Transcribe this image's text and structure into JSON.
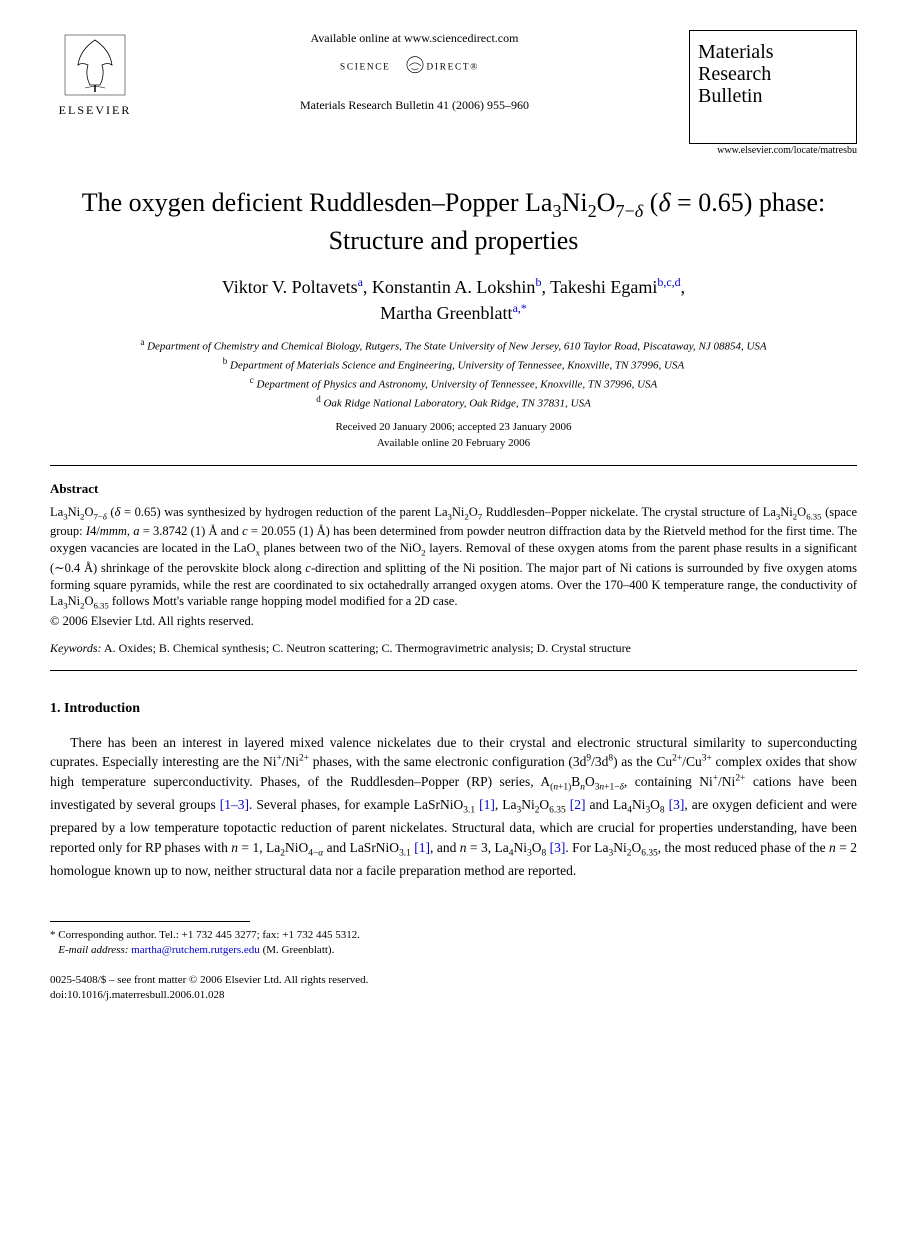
{
  "header": {
    "elsevier_label": "ELSEVIER",
    "available_online": "Available online at www.sciencedirect.com",
    "sciencedirect_label": "SCIENCE DIRECT",
    "journal_ref": "Materials Research Bulletin 41 (2006) 955–960",
    "journal_box_line1": "Materials",
    "journal_box_line2": "Research",
    "journal_box_line3": "Bulletin",
    "journal_url": "www.elsevier.com/locate/matresbu"
  },
  "title": {
    "html": "The oxygen deficient Ruddlesden–Popper La<sub>3</sub>Ni<sub>2</sub>O<sub>7−<i>δ</i></sub> (<i>δ</i> = 0.65) phase: Structure and properties"
  },
  "authors": {
    "a1": "Viktor V. Poltavets",
    "a1sup": "a",
    "a2": "Konstantin A. Lokshin",
    "a2sup": "b",
    "a3": "Takeshi Egami",
    "a3sup": "b,c,d",
    "a4": "Martha Greenblatt",
    "a4sup": "a,",
    "a4star": "*"
  },
  "affiliations": {
    "a": "Department of Chemistry and Chemical Biology, Rutgers, The State University of New Jersey, 610 Taylor Road, Piscataway, NJ 08854, USA",
    "b": "Department of Materials Science and Engineering, University of Tennessee, Knoxville, TN 37996, USA",
    "c": "Department of Physics and Astronomy, University of Tennessee, Knoxville, TN 37996, USA",
    "d": "Oak Ridge National Laboratory, Oak Ridge, TN 37831, USA"
  },
  "dates": {
    "line1": "Received 20 January 2006; accepted 23 January 2006",
    "line2": "Available online 20 February 2006"
  },
  "abstract": {
    "head": "Abstract",
    "body_html": "La<sub>3</sub>Ni<sub>2</sub>O<sub>7−<i>δ</i></sub> (<i>δ</i> = 0.65) was synthesized by hydrogen reduction of the parent La<sub>3</sub>Ni<sub>2</sub>O<sub>7</sub> Ruddlesden–Popper nickelate. The crystal structure of La<sub>3</sub>Ni<sub>2</sub>O<sub>6.35</sub> (space group: <i>I</i>4/<i>mmm</i>, <i>a</i> = 3.8742 (1) Å and <i>c</i> = 20.055 (1) Å) has been determined from powder neutron diffraction data by the Rietveld method for the first time. The oxygen vacancies are located in the LaO<sub>x</sub> planes between two of the NiO<sub>2</sub> layers. Removal of these oxygen atoms from the parent phase results in a significant (∼0.4 Å) shrinkage of the perovskite block along <i>c</i>-direction and splitting of the Ni position. The major part of Ni cations is surrounded by five oxygen atoms forming square pyramids, while the rest are coordinated to six octahedrally arranged oxygen atoms. Over the 170–400 K temperature range, the conductivity of La<sub>3</sub>Ni<sub>2</sub>O<sub>6.35</sub> follows Mott's variable range hopping model modified for a 2D case.",
    "copyright": "© 2006 Elsevier Ltd. All rights reserved."
  },
  "keywords": {
    "label": "Keywords:",
    "text": "A. Oxides; B. Chemical synthesis; C. Neutron scattering; C. Thermogravimetric analysis; D. Crystal structure"
  },
  "section1": {
    "head": "1. Introduction",
    "para_html": "There has been an interest in layered mixed valence nickelates due to their crystal and electronic structural similarity to superconducting cuprates. Especially interesting are the Ni<sup>+</sup>/Ni<sup>2+</sup> phases, with the same electronic configuration (3d<sup>9</sup>/3d<sup>8</sup>) as the Cu<sup>2+</sup>/Cu<sup>3+</sup> complex oxides that show high temperature superconductivity. Phases, of the Ruddlesden–Popper (RP) series, A<sub>(<i>n</i>+1)</sub>B<sub><i>n</i></sub>O<sub>3<i>n</i>+1−<i>δ</i></sub>, containing Ni<sup>+</sup>/Ni<sup>2+</sup> cations have been investigated by several groups <a class=\"ref\" href=\"#\">[1–3]</a>. Several phases, for example LaSrNiO<sub>3.1</sub> <a class=\"ref\" href=\"#\">[1]</a>, La<sub>3</sub>Ni<sub>2</sub>O<sub>6.35</sub> <a class=\"ref\" href=\"#\">[2]</a> and La<sub>4</sub>Ni<sub>3</sub>O<sub>8</sub> <a class=\"ref\" href=\"#\">[3]</a>, are oxygen deficient and were prepared by a low temperature topotactic reduction of parent nickelates. Structural data, which are crucial for properties understanding, have been reported only for RP phases with <i>n</i> = 1, La<sub>2</sub>NiO<sub>4−<i>α</i></sub> and LaSrNiO<sub>3.1</sub> <a class=\"ref\" href=\"#\">[1]</a>, and <i>n</i> = 3, La<sub>4</sub>Ni<sub>3</sub>O<sub>8</sub> <a class=\"ref\" href=\"#\">[3]</a>. For La<sub>3</sub>Ni<sub>2</sub>O<sub>6.35</sub>, the most reduced phase of the <i>n</i> = 2 homologue known up to now, neither structural data nor a facile preparation method are reported."
  },
  "footnotes": {
    "corr": "* Corresponding author. Tel.: +1 732 445 3277; fax: +1 732 445 5312.",
    "email_label": "E-mail address:",
    "email": "martha@rutchem.rutgers.edu",
    "email_name": "(M. Greenblatt)."
  },
  "bottom": {
    "line1": "0025-5408/$ – see front matter © 2006 Elsevier Ltd. All rights reserved.",
    "line2": "doi:10.1016/j.materresbull.2006.01.028"
  },
  "colors": {
    "link": "#0000cc",
    "text": "#000000",
    "bg": "#ffffff"
  }
}
